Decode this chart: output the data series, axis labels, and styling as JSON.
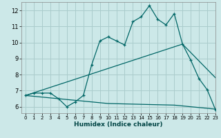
{
  "title": "",
  "xlabel": "Humidex (Indice chaleur)",
  "bg_color": "#cce8e8",
  "grid_color": "#aacccc",
  "line_color": "#006666",
  "xlim": [
    -0.5,
    23
  ],
  "ylim": [
    5.6,
    12.5
  ],
  "xticks": [
    0,
    1,
    2,
    3,
    4,
    5,
    6,
    7,
    8,
    9,
    10,
    11,
    12,
    13,
    14,
    15,
    16,
    17,
    18,
    19,
    20,
    21,
    22,
    23
  ],
  "yticks": [
    6,
    7,
    8,
    9,
    10,
    11,
    12
  ],
  "line1_x": [
    0,
    1,
    2,
    3,
    4,
    5,
    6,
    7,
    8,
    9,
    10,
    11,
    12,
    13,
    14,
    15,
    16,
    17,
    18,
    19,
    20,
    21,
    22,
    23
  ],
  "line1_y": [
    6.7,
    6.85,
    6.85,
    6.85,
    6.5,
    6.0,
    6.3,
    6.7,
    8.6,
    10.1,
    10.35,
    10.1,
    9.85,
    11.3,
    11.6,
    12.3,
    11.45,
    11.1,
    11.8,
    9.9,
    8.9,
    7.75,
    7.05,
    5.8
  ],
  "line2_x": [
    0,
    19,
    23
  ],
  "line2_y": [
    6.7,
    9.9,
    7.8
  ],
  "line3_x": [
    0,
    4,
    10,
    18,
    23
  ],
  "line3_y": [
    6.7,
    6.5,
    6.2,
    6.1,
    5.85
  ]
}
